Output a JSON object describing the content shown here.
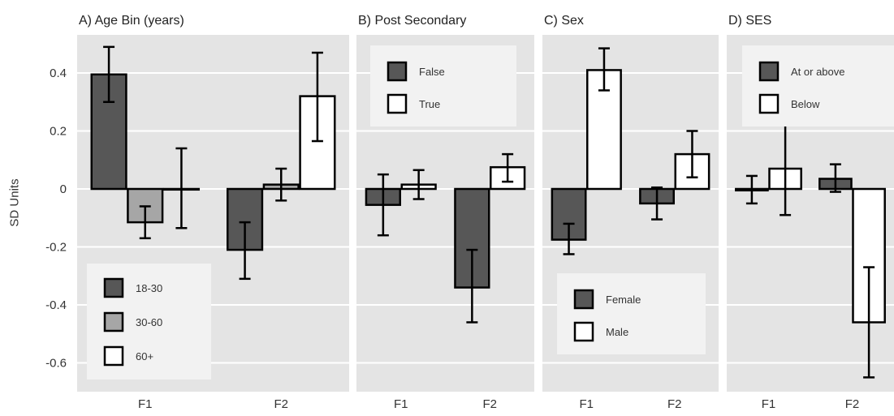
{
  "colors": {
    "panel_bg": "#e4e4e4",
    "legend_bg": "#f2f2f2",
    "gridline": "#ffffff",
    "bar_dark": "#575757",
    "bar_mid": "#a6a6a6",
    "bar_light": "#ffffff",
    "bar_outline": "#000000",
    "text": "#333333"
  },
  "figure": {
    "ylabel": "SD Units"
  },
  "chart_data": [
    {
      "type": "bar",
      "title": "A) Age Bin (years)",
      "categories": [
        "F1",
        "F2"
      ],
      "ylabel": "SD Units",
      "ylim": [
        -0.7,
        0.53
      ],
      "yticks": [
        -0.6,
        -0.4,
        -0.2,
        0,
        0.2,
        0.4
      ],
      "ytick_labels": [
        "-0.6",
        "-0.4",
        "-0.2",
        "0",
        "0.2",
        "0.4"
      ],
      "grid": true,
      "legend_position": "bottom-left",
      "series": [
        {
          "name": "18-30",
          "color": "#575757",
          "values": [
            0.395,
            -0.21
          ],
          "err_low": [
            0.3,
            -0.31
          ],
          "err_high": [
            0.49,
            -0.115
          ]
        },
        {
          "name": "30-60",
          "color": "#a6a6a6",
          "values": [
            -0.115,
            0.015
          ],
          "err_low": [
            -0.17,
            -0.04
          ],
          "err_high": [
            -0.06,
            0.07
          ]
        },
        {
          "name": "60+",
          "color": "#ffffff",
          "values": [
            0.0,
            0.32
          ],
          "err_low": [
            -0.135,
            0.165
          ],
          "err_high": [
            0.14,
            0.47
          ]
        }
      ]
    },
    {
      "type": "bar",
      "title": "B) Post Secondary",
      "categories": [
        "F1",
        "F2"
      ],
      "ylim": [
        -0.7,
        0.53
      ],
      "grid": true,
      "legend_position": "top",
      "series": [
        {
          "name": "False",
          "color": "#575757",
          "values": [
            -0.055,
            -0.34
          ],
          "err_low": [
            -0.16,
            -0.46
          ],
          "err_high": [
            0.05,
            -0.21
          ]
        },
        {
          "name": "True",
          "color": "#ffffff",
          "values": [
            0.015,
            0.075
          ],
          "err_low": [
            -0.035,
            0.025
          ],
          "err_high": [
            0.065,
            0.12
          ]
        }
      ]
    },
    {
      "type": "bar",
      "title": "C) Sex",
      "categories": [
        "F1",
        "F2"
      ],
      "ylim": [
        -0.7,
        0.53
      ],
      "grid": true,
      "legend_position": "bottom",
      "series": [
        {
          "name": "Female",
          "color": "#575757",
          "values": [
            -0.175,
            -0.05
          ],
          "err_low": [
            -0.225,
            -0.105
          ],
          "err_high": [
            -0.12,
            0.005
          ]
        },
        {
          "name": "Male",
          "color": "#ffffff",
          "values": [
            0.41,
            0.12
          ],
          "err_low": [
            0.34,
            0.04
          ],
          "err_high": [
            0.485,
            0.2
          ]
        }
      ]
    },
    {
      "type": "bar",
      "title": "D) SES",
      "categories": [
        "F1",
        "F2"
      ],
      "ylim": [
        -0.7,
        0.53
      ],
      "grid": true,
      "legend_position": "top",
      "series": [
        {
          "name": "At or above",
          "color": "#575757",
          "values": [
            -0.005,
            0.035
          ],
          "err_low": [
            -0.05,
            -0.01
          ],
          "err_high": [
            0.045,
            0.085
          ]
        },
        {
          "name": "Below",
          "color": "#ffffff",
          "values": [
            0.07,
            -0.46
          ],
          "err_low": [
            -0.09,
            -0.65
          ],
          "err_high": [
            0.225,
            -0.27
          ]
        }
      ]
    }
  ]
}
